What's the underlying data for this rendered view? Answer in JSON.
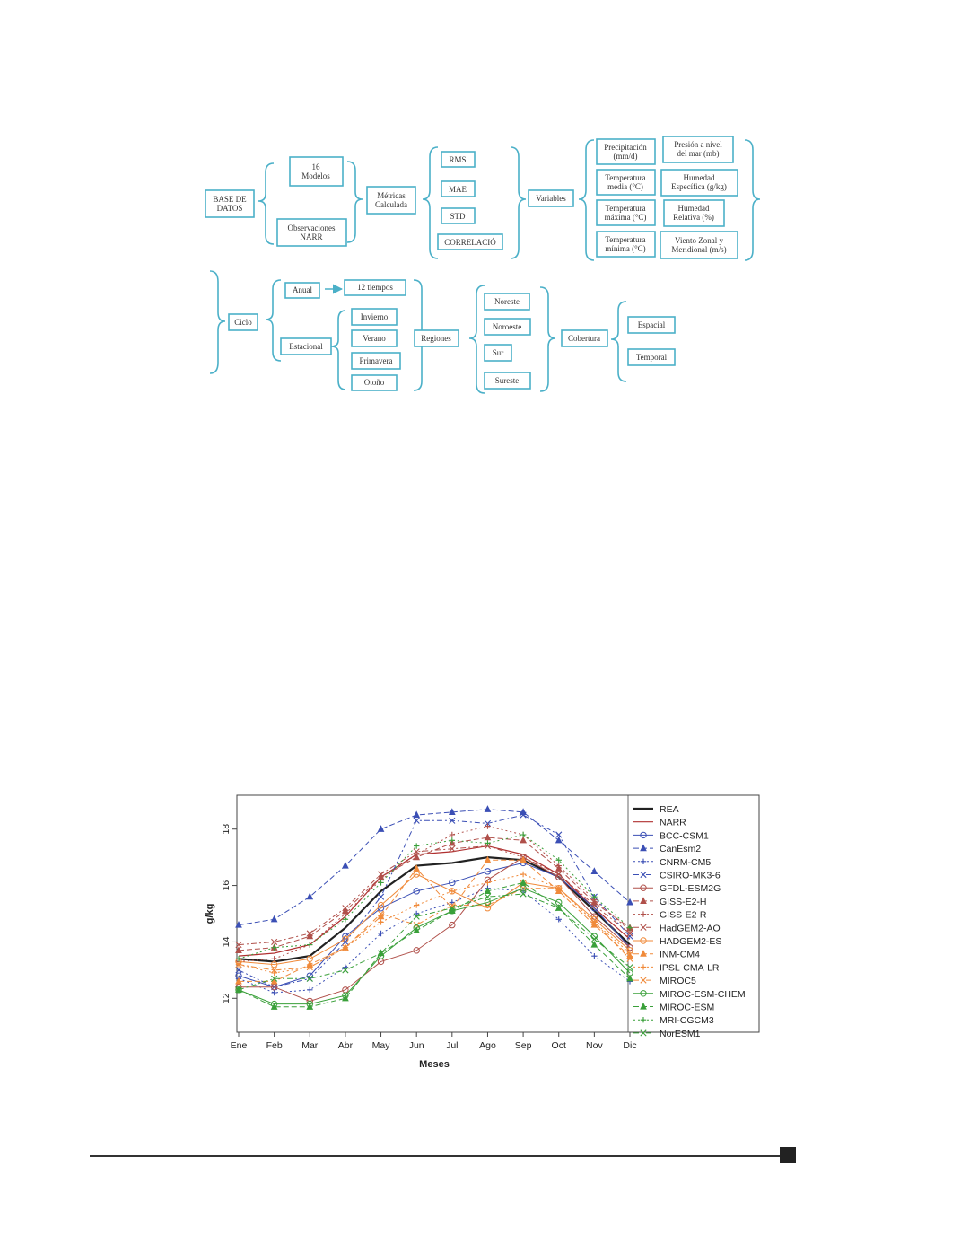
{
  "diagram": {
    "base": "BASE DE\nDATOS",
    "modelos": "16\nModelos",
    "observaciones": "Observaciones\nNARR",
    "metricas": "Métricas\nCalculada",
    "metric_items": [
      "RMS",
      "MAE",
      "STD",
      "CORRELACIÓ"
    ],
    "variables": "Variables",
    "variable_items": [
      "Precipitación\n(mm/d)",
      "Presión a nivel\ndel mar (mb)",
      "Temperatura\nmedia (°C)",
      "Humedad\nEspecífica (g/kg)",
      "Temperatura\nmáxima (°C)",
      "Humedad\nRelativa (%)",
      "Temperatura\nmínima (°C)",
      "Viento Zonal y\nMeridional (m/s)"
    ],
    "ciclo": "Ciclo",
    "anual": "Anual",
    "tiempos": "12 tiempos",
    "estacional": "Estacional",
    "seasons": [
      "Invierno",
      "Verano",
      "Primavera",
      "Otoño"
    ],
    "regiones": "Regiones",
    "region_items": [
      "Noreste",
      "Noroeste",
      "Sur",
      "Sureste"
    ],
    "cobertura": "Cobertura",
    "cobertura_items": [
      "Espacial",
      "Temporal"
    ]
  },
  "chart_data": {
    "type": "line",
    "xlabel": "Meses",
    "ylabel": "g/kg",
    "ylim": [
      10.8,
      19.2
    ],
    "yticks": [
      12,
      14,
      16,
      18
    ],
    "categories": [
      "Ene",
      "Feb",
      "Mar",
      "Abr",
      "May",
      "Jun",
      "Jul",
      "Ago",
      "Sep",
      "Oct",
      "Nov",
      "Dic"
    ],
    "legend_position": "right",
    "series": [
      {
        "name": "REA",
        "color": "#222222",
        "dash": "",
        "marker": "none",
        "width": 2.2,
        "values": [
          13.4,
          13.3,
          13.5,
          14.5,
          15.8,
          16.7,
          16.8,
          17.0,
          16.9,
          16.3,
          15.1,
          13.9
        ]
      },
      {
        "name": "NARR",
        "color": "#b03030",
        "dash": "",
        "marker": "none",
        "width": 1.2,
        "values": [
          13.5,
          13.6,
          13.9,
          14.9,
          16.3,
          17.1,
          17.2,
          17.4,
          17.1,
          16.4,
          15.2,
          14.1
        ]
      },
      {
        "name": "BCC-CSM1",
        "color": "#3b4fb5",
        "dash": "",
        "marker": "circle",
        "width": 1,
        "values": [
          12.8,
          12.4,
          12.8,
          14.2,
          15.2,
          15.8,
          16.1,
          16.5,
          16.8,
          16.3,
          15.2,
          13.8
        ]
      },
      {
        "name": "CanEsm2",
        "color": "#3b4fb5",
        "dash": "6,3",
        "marker": "triangle",
        "width": 1,
        "values": [
          14.6,
          14.8,
          15.6,
          16.7,
          18.0,
          18.5,
          18.6,
          18.7,
          18.6,
          17.6,
          16.5,
          15.4
        ]
      },
      {
        "name": "CNRM-CM5",
        "color": "#3b4fb5",
        "dash": "2,3",
        "marker": "plus",
        "width": 1,
        "values": [
          12.7,
          12.2,
          12.3,
          13.1,
          14.3,
          15.0,
          15.4,
          15.9,
          15.8,
          14.8,
          13.5,
          12.6
        ]
      },
      {
        "name": "CSIRO-MK3-6",
        "color": "#3b4fb5",
        "dash": "6,3,2,3",
        "marker": "x",
        "width": 1,
        "values": [
          13.0,
          12.4,
          12.7,
          14.0,
          15.6,
          18.3,
          18.3,
          18.2,
          18.5,
          17.8,
          15.6,
          14.2
        ]
      },
      {
        "name": "GFDL-ESM2G",
        "color": "#b0504a",
        "dash": "",
        "marker": "circle",
        "width": 1,
        "values": [
          12.4,
          12.4,
          11.9,
          12.3,
          13.3,
          13.7,
          14.6,
          16.2,
          17.0,
          16.3,
          14.9,
          13.8
        ]
      },
      {
        "name": "GISS-E2-H",
        "color": "#b0504a",
        "dash": "6,3",
        "marker": "triangle",
        "width": 1,
        "values": [
          13.7,
          13.8,
          14.2,
          15.1,
          16.3,
          17.0,
          17.5,
          17.7,
          17.6,
          16.6,
          15.4,
          14.5
        ]
      },
      {
        "name": "GISS-E2-R",
        "color": "#b0504a",
        "dash": "2,3",
        "marker": "plus",
        "width": 1,
        "values": [
          13.3,
          13.4,
          13.9,
          15.0,
          16.2,
          17.1,
          17.8,
          18.1,
          17.8,
          16.7,
          15.5,
          14.4
        ]
      },
      {
        "name": "HadGEM2-AO",
        "color": "#b0504a",
        "dash": "6,3,2,3",
        "marker": "x",
        "width": 1,
        "values": [
          13.9,
          14.0,
          14.3,
          15.2,
          16.4,
          17.2,
          17.3,
          17.4,
          17.0,
          16.4,
          15.3,
          14.3
        ]
      },
      {
        "name": "HADGEM2-ES",
        "color": "#f08a3a",
        "dash": "",
        "marker": "circle",
        "width": 1,
        "values": [
          13.3,
          13.2,
          13.4,
          14.1,
          15.3,
          16.4,
          15.8,
          15.2,
          16.1,
          15.9,
          14.8,
          13.7
        ]
      },
      {
        "name": "INM-CM4",
        "color": "#f08a3a",
        "dash": "6,3",
        "marker": "triangle",
        "width": 1,
        "values": [
          12.6,
          12.6,
          13.2,
          13.8,
          14.9,
          16.6,
          15.2,
          16.9,
          16.9,
          15.8,
          14.6,
          13.5
        ]
      },
      {
        "name": "IPSL-CMA-LR",
        "color": "#f08a3a",
        "dash": "2,3",
        "marker": "plus",
        "width": 1,
        "values": [
          13.2,
          12.9,
          13.1,
          13.8,
          14.7,
          15.3,
          15.8,
          16.1,
          16.4,
          15.9,
          14.7,
          13.6
        ]
      },
      {
        "name": "MIROC5",
        "color": "#f08a3a",
        "dash": "6,3,2,3",
        "marker": "x",
        "width": 1,
        "values": [
          13.2,
          13.0,
          13.1,
          13.8,
          15.0,
          14.6,
          15.3,
          15.3,
          15.9,
          15.9,
          14.7,
          13.4
        ]
      },
      {
        "name": "MIROC-ESM-CHEM",
        "color": "#3aa03a",
        "dash": "",
        "marker": "circle",
        "width": 1,
        "values": [
          12.3,
          11.8,
          11.8,
          12.1,
          13.5,
          14.5,
          15.1,
          15.4,
          15.9,
          15.4,
          14.2,
          12.9
        ]
      },
      {
        "name": "MIROC-ESM",
        "color": "#3aa03a",
        "dash": "6,3",
        "marker": "triangle",
        "width": 1,
        "values": [
          12.3,
          11.7,
          11.7,
          12.0,
          13.6,
          14.4,
          15.1,
          15.8,
          16.1,
          15.2,
          13.9,
          12.7
        ]
      },
      {
        "name": "MRI-CGCM3",
        "color": "#3aa03a",
        "dash": "2,3",
        "marker": "plus",
        "width": 1,
        "values": [
          13.4,
          13.8,
          13.9,
          14.8,
          16.1,
          17.4,
          17.6,
          17.5,
          17.8,
          16.9,
          15.6,
          14.5
        ]
      },
      {
        "name": "NorESM1",
        "color": "#3aa03a",
        "dash": "6,3,2,3",
        "marker": "x",
        "width": 1,
        "values": [
          12.3,
          12.7,
          12.7,
          13.0,
          13.6,
          14.9,
          15.2,
          15.6,
          15.7,
          15.2,
          14.1,
          13.1
        ]
      }
    ]
  }
}
